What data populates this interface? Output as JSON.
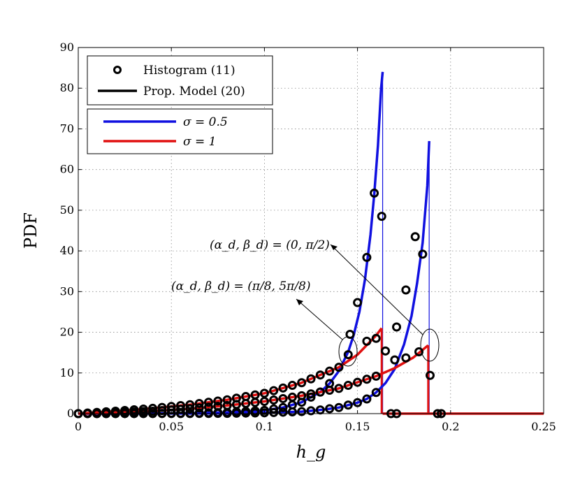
{
  "chart_data": {
    "type": "line",
    "title": "",
    "xlabel": "h_g",
    "ylabel": "PDF",
    "xlim": [
      0,
      0.25
    ],
    "ylim": [
      0,
      90
    ],
    "grid": true,
    "x_ticks": [
      "0",
      "0.05",
      "0.1",
      "0.15",
      "0.2",
      "0.25"
    ],
    "y_ticks": [
      "0",
      "10",
      "20",
      "30",
      "40",
      "50",
      "60",
      "70",
      "80",
      "90"
    ],
    "legend_markers": {
      "position": "top-left",
      "entries": [
        {
          "label": "Histogram (11)",
          "style": "circle-marker"
        },
        {
          "label": "Prop. Model (20)",
          "style": "line"
        }
      ]
    },
    "legend_sigma": {
      "position": "top-left",
      "entries": [
        {
          "label": "σ = 0.5",
          "color": "#1010e0"
        },
        {
          "label": "σ = 1",
          "color": "#e01010"
        }
      ]
    },
    "annotations": [
      {
        "text": "(α_d, β_d) = (0, π/2)",
        "target": "σ curves ending at 0.188"
      },
      {
        "text": "(α_d, β_d) = (π/8, 5π/8)",
        "target": "σ curves ending at 0.163"
      }
    ],
    "series": [
      {
        "name": "Prop. Model, σ = 0.5, (α_d, β_d) = (π/8, 5π/8)",
        "color": "#1010e0",
        "x": [
          0,
          0.04,
          0.06,
          0.08,
          0.1,
          0.11,
          0.12,
          0.13,
          0.135,
          0.14,
          0.145,
          0.148,
          0.151,
          0.154,
          0.157,
          0.159,
          0.161,
          0.1627,
          0.1635
        ],
        "y": [
          0,
          0.05,
          0.1,
          0.3,
          0.8,
          1.5,
          2.8,
          5.3,
          7.4,
          10.5,
          15.2,
          19.4,
          25,
          33,
          44,
          54,
          66,
          80,
          84
        ]
      },
      {
        "name": "Prop. Model, σ = 0.5, (α_d, β_d) = (0, π/2)",
        "color": "#1010e0",
        "x": [
          0,
          0.06,
          0.08,
          0.1,
          0.12,
          0.13,
          0.14,
          0.15,
          0.155,
          0.16,
          0.165,
          0.17,
          0.175,
          0.179,
          0.182,
          0.185,
          0.1875,
          0.1885
        ],
        "y": [
          0,
          0.02,
          0.07,
          0.2,
          0.5,
          0.9,
          1.5,
          2.7,
          3.6,
          5.2,
          7.5,
          11,
          17,
          24,
          32,
          42,
          56,
          67
        ]
      },
      {
        "name": "Prop. Model, σ = 1, (α_d, β_d) = (π/8, 5π/8)",
        "color": "#e01010",
        "x": [
          0,
          0.02,
          0.04,
          0.06,
          0.08,
          0.1,
          0.12,
          0.14,
          0.15,
          0.16,
          0.163
        ],
        "y": [
          0,
          0.6,
          1.3,
          2.2,
          3.4,
          5,
          7.6,
          11.4,
          14.5,
          19.2,
          21
        ]
      },
      {
        "name": "Prop. Model, σ = 1, (α_d, β_d) = (0, π/2)",
        "color": "#e01010",
        "x": [
          0,
          0.02,
          0.04,
          0.06,
          0.08,
          0.1,
          0.12,
          0.14,
          0.16,
          0.17,
          0.18,
          0.188
        ],
        "y": [
          0,
          0.2,
          0.6,
          1.2,
          2,
          3,
          4.4,
          6.2,
          9.2,
          11.2,
          13.8,
          16.8
        ]
      },
      {
        "name": "Prop. Model, tail",
        "color": "#e01010",
        "x": [
          0.1635,
          0.188,
          0.188,
          0.25
        ],
        "y": [
          0,
          0,
          0,
          0
        ]
      }
    ],
    "histogram": [
      {
        "name": "Histogram, σ = 0.5, (π/8, 5π/8)",
        "x": [
          0.146,
          0.15,
          0.155,
          0.159,
          0.163
        ],
        "y": [
          19.5,
          27.3,
          38.4,
          54.2,
          48.5
        ]
      },
      {
        "name": "Histogram, σ = 0.5, (0, π/2)",
        "x": [
          0.171,
          0.176,
          0.181,
          0.185,
          0.189
        ],
        "y": [
          21.3,
          30.4,
          43.5,
          39.2,
          9.4
        ]
      },
      {
        "name": "Histogram, σ = 1, (π/8, 5π/8)",
        "x": [
          0.145,
          0.155,
          0.16
        ],
        "y": [
          14.5,
          17.8,
          18.5
        ]
      },
      {
        "name": "Histogram, σ = 1, (0, π/2)",
        "x": [
          0.165,
          0.17,
          0.176,
          0.183
        ],
        "y": [
          15.4,
          13.2,
          13.7,
          15.2
        ]
      },
      {
        "name": "Histogram, zeros",
        "x": [
          0.168,
          0.171,
          0.193,
          0.195
        ],
        "y": [
          0,
          0,
          0,
          0
        ]
      }
    ]
  }
}
